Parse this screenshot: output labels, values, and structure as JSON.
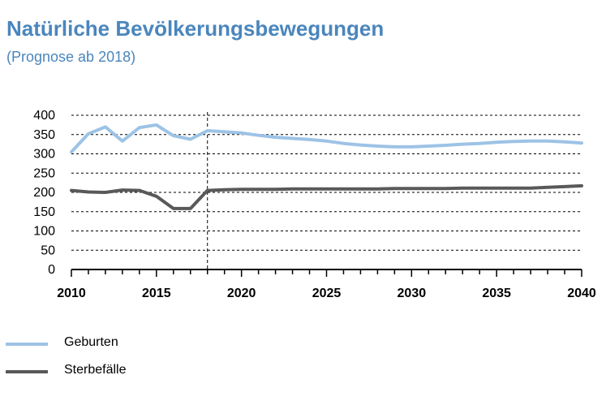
{
  "header": {
    "title": "Natürliche Bevölkerungsbewegungen",
    "subtitle": "(Prognose ab 2018)"
  },
  "colors": {
    "title": "#4a86bd",
    "births": "#9dc3e6",
    "deaths": "#595959"
  },
  "chart_data": {
    "type": "line",
    "title": "Natürliche Bevölkerungsbewegungen",
    "subtitle": "(Prognose ab 2018)",
    "xlabel": "",
    "ylabel": "",
    "xlim": [
      2010,
      2040
    ],
    "ylim": [
      0,
      400
    ],
    "x_ticks": [
      2010,
      2015,
      2020,
      2025,
      2030,
      2035,
      2040
    ],
    "y_ticks": [
      0,
      50,
      100,
      150,
      200,
      250,
      300,
      350,
      400
    ],
    "grid": "horizontal dashed",
    "forecast_from": 2018,
    "legend_position": "bottom-left",
    "x": [
      2010,
      2011,
      2012,
      2013,
      2014,
      2015,
      2016,
      2017,
      2018,
      2019,
      2020,
      2021,
      2022,
      2023,
      2024,
      2025,
      2026,
      2027,
      2028,
      2029,
      2030,
      2031,
      2032,
      2033,
      2034,
      2035,
      2036,
      2037,
      2038,
      2039,
      2040
    ],
    "series": [
      {
        "name": "Geburten",
        "color": "#9dc3e6",
        "values": [
          305,
          352,
          370,
          333,
          368,
          375,
          347,
          338,
          360,
          357,
          354,
          348,
          343,
          340,
          337,
          333,
          327,
          323,
          320,
          318,
          318,
          320,
          322,
          325,
          327,
          330,
          332,
          333,
          333,
          331,
          328
        ]
      },
      {
        "name": "Sterbefälle",
        "color": "#595959",
        "values": [
          205,
          201,
          200,
          206,
          205,
          190,
          158,
          158,
          205,
          207,
          208,
          208,
          208,
          209,
          209,
          209,
          209,
          209,
          209,
          210,
          210,
          210,
          210,
          211,
          211,
          211,
          211,
          211,
          213,
          215,
          217
        ]
      }
    ]
  }
}
